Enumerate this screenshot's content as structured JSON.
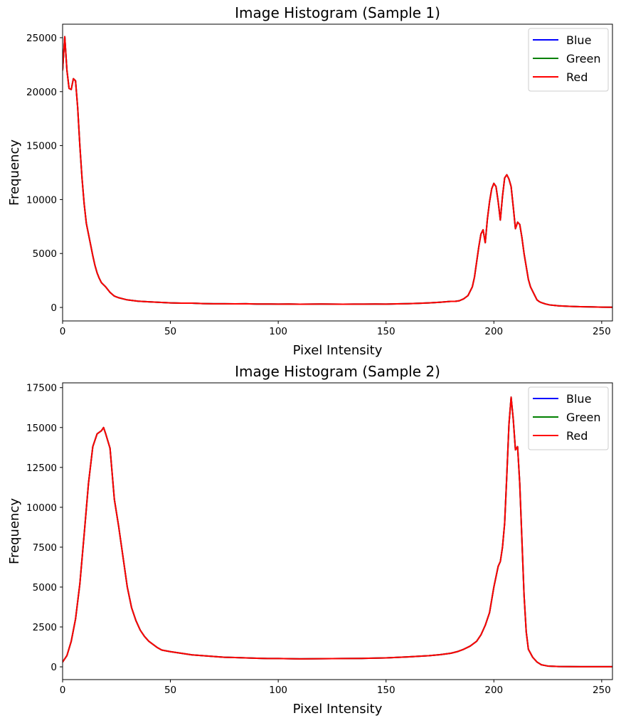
{
  "chart_data": [
    {
      "type": "line",
      "title": "Image Histogram (Sample 1)",
      "xlabel": "Pixel Intensity",
      "ylabel": "Frequency",
      "xlim": [
        0,
        255
      ],
      "ylim": [
        -1250,
        26250
      ],
      "xticks": [
        0,
        50,
        100,
        150,
        200,
        250
      ],
      "yticks": [
        0,
        5000,
        10000,
        15000,
        20000,
        25000
      ],
      "grid": false,
      "legend_position": "upper-right",
      "legend": [
        "Blue",
        "Green",
        "Red"
      ],
      "colors": {
        "Blue": "#0000ff",
        "Green": "#008000",
        "Red": "#ff0000"
      },
      "x": [
        0,
        1,
        2,
        3,
        4,
        5,
        6,
        7,
        8,
        9,
        10,
        11,
        12,
        13,
        14,
        15,
        16,
        17,
        18,
        19,
        20,
        22,
        24,
        26,
        28,
        30,
        35,
        40,
        45,
        50,
        55,
        60,
        65,
        70,
        75,
        80,
        85,
        90,
        95,
        100,
        105,
        110,
        115,
        120,
        125,
        130,
        135,
        140,
        145,
        150,
        155,
        160,
        165,
        170,
        175,
        180,
        182,
        184,
        186,
        188,
        190,
        191,
        192,
        193,
        194,
        195,
        196,
        197,
        198,
        199,
        200,
        201,
        202,
        203,
        204,
        205,
        206,
        207,
        208,
        209,
        210,
        211,
        212,
        213,
        214,
        215,
        216,
        217,
        218,
        219,
        220,
        221,
        222,
        224,
        226,
        228,
        230,
        235,
        240,
        245,
        250,
        255
      ],
      "series": [
        {
          "name": "Blue",
          "values": [
            22000,
            25100,
            22000,
            20300,
            20200,
            21200,
            21000,
            18500,
            15000,
            12000,
            9600,
            7800,
            6800,
            5800,
            4800,
            3900,
            3200,
            2700,
            2300,
            2100,
            1900,
            1400,
            1050,
            900,
            800,
            700,
            580,
            520,
            470,
            420,
            400,
            400,
            360,
            340,
            340,
            330,
            340,
            320,
            320,
            310,
            320,
            300,
            310,
            320,
            310,
            300,
            310,
            310,
            320,
            310,
            330,
            350,
            380,
            420,
            480,
            560,
            560,
            620,
            800,
            1100,
            1900,
            2800,
            4200,
            5600,
            6800,
            7200,
            6000,
            8200,
            9800,
            11000,
            11500,
            11200,
            9800,
            8100,
            10300,
            12000,
            12300,
            11900,
            11200,
            9300,
            7300,
            7900,
            7700,
            6500,
            5000,
            3800,
            2600,
            1900,
            1500,
            1100,
            700,
            550,
            450,
            320,
            230,
            190,
            150,
            100,
            70,
            50,
            30,
            20
          ]
        },
        {
          "name": "Green",
          "values": [
            22000,
            25100,
            22000,
            20300,
            20200,
            21200,
            21000,
            18500,
            15000,
            12000,
            9600,
            7800,
            6800,
            5800,
            4800,
            3900,
            3200,
            2700,
            2300,
            2100,
            1900,
            1400,
            1050,
            900,
            800,
            700,
            580,
            520,
            470,
            420,
            400,
            400,
            360,
            340,
            340,
            330,
            340,
            320,
            320,
            310,
            320,
            300,
            310,
            320,
            310,
            300,
            310,
            310,
            320,
            310,
            330,
            350,
            380,
            420,
            480,
            560,
            560,
            620,
            800,
            1100,
            1900,
            2800,
            4200,
            5600,
            6800,
            7200,
            6000,
            8200,
            9800,
            11000,
            11500,
            11200,
            9800,
            8100,
            10300,
            12000,
            12300,
            11900,
            11200,
            9300,
            7300,
            7900,
            7700,
            6500,
            5000,
            3800,
            2600,
            1900,
            1500,
            1100,
            700,
            550,
            450,
            320,
            230,
            190,
            150,
            100,
            70,
            50,
            30,
            20
          ]
        },
        {
          "name": "Red",
          "values": [
            22000,
            25100,
            22000,
            20300,
            20200,
            21200,
            21000,
            18500,
            15000,
            12000,
            9600,
            7800,
            6800,
            5800,
            4800,
            3900,
            3200,
            2700,
            2300,
            2100,
            1900,
            1400,
            1050,
            900,
            800,
            700,
            580,
            520,
            470,
            420,
            400,
            400,
            360,
            340,
            340,
            330,
            340,
            320,
            320,
            310,
            320,
            300,
            310,
            320,
            310,
            300,
            310,
            310,
            320,
            310,
            330,
            350,
            380,
            420,
            480,
            560,
            560,
            620,
            800,
            1100,
            1900,
            2800,
            4200,
            5600,
            6800,
            7200,
            6000,
            8200,
            9800,
            11000,
            11500,
            11200,
            9800,
            8100,
            10300,
            12000,
            12300,
            11900,
            11200,
            9300,
            7300,
            7900,
            7700,
            6500,
            5000,
            3800,
            2600,
            1900,
            1500,
            1100,
            700,
            550,
            450,
            320,
            230,
            190,
            150,
            100,
            70,
            50,
            30,
            20
          ]
        }
      ]
    },
    {
      "type": "line",
      "title": "Image Histogram (Sample 2)",
      "xlabel": "Pixel Intensity",
      "ylabel": "Frequency",
      "xlim": [
        0,
        255
      ],
      "ylim": [
        -800,
        17800
      ],
      "xticks": [
        0,
        50,
        100,
        150,
        200,
        250
      ],
      "yticks": [
        0,
        2500,
        5000,
        7500,
        10000,
        12500,
        15000,
        17500
      ],
      "grid": false,
      "legend_position": "upper-right",
      "legend": [
        "Blue",
        "Green",
        "Red"
      ],
      "colors": {
        "Blue": "#0000ff",
        "Green": "#008000",
        "Red": "#ff0000"
      },
      "x": [
        0,
        2,
        4,
        6,
        8,
        10,
        12,
        14,
        16,
        18,
        19,
        20,
        22,
        24,
        26,
        28,
        30,
        32,
        34,
        36,
        38,
        40,
        42,
        44,
        46,
        48,
        50,
        55,
        60,
        65,
        70,
        75,
        80,
        85,
        90,
        95,
        100,
        110,
        120,
        130,
        140,
        150,
        160,
        170,
        175,
        180,
        183,
        186,
        189,
        192,
        194,
        196,
        198,
        200,
        202,
        203,
        204,
        205,
        206,
        207,
        208,
        209,
        210,
        211,
        212,
        213,
        214,
        215,
        216,
        218,
        220,
        222,
        225,
        230,
        240,
        250,
        255
      ],
      "series": [
        {
          "name": "Blue",
          "values": [
            300,
            700,
            1600,
            3000,
            5200,
            8300,
            11500,
            13800,
            14600,
            14800,
            15000,
            14600,
            13700,
            10500,
            8800,
            6900,
            5000,
            3700,
            2900,
            2300,
            1900,
            1600,
            1400,
            1200,
            1050,
            1000,
            950,
            850,
            750,
            700,
            650,
            600,
            580,
            560,
            540,
            520,
            520,
            500,
            510,
            520,
            530,
            560,
            620,
            700,
            760,
            850,
            950,
            1100,
            1300,
            1600,
            2000,
            2600,
            3400,
            5000,
            6300,
            6600,
            7500,
            9000,
            12000,
            15200,
            16900,
            15500,
            13600,
            13800,
            11500,
            8000,
            4500,
            2200,
            1100,
            600,
            300,
            130,
            50,
            20,
            10,
            10,
            10
          ]
        },
        {
          "name": "Green",
          "values": [
            300,
            700,
            1600,
            3000,
            5200,
            8300,
            11500,
            13800,
            14600,
            14800,
            15000,
            14600,
            13700,
            10500,
            8800,
            6900,
            5000,
            3700,
            2900,
            2300,
            1900,
            1600,
            1400,
            1200,
            1050,
            1000,
            950,
            850,
            750,
            700,
            650,
            600,
            580,
            560,
            540,
            520,
            520,
            500,
            510,
            520,
            530,
            560,
            620,
            700,
            760,
            850,
            950,
            1100,
            1300,
            1600,
            2000,
            2600,
            3400,
            5000,
            6300,
            6600,
            7500,
            9000,
            12000,
            15200,
            16900,
            15500,
            13600,
            13800,
            11500,
            8000,
            4500,
            2200,
            1100,
            600,
            300,
            130,
            50,
            20,
            10,
            10,
            10
          ]
        },
        {
          "name": "Red",
          "values": [
            300,
            700,
            1600,
            3000,
            5200,
            8300,
            11500,
            13800,
            14600,
            14800,
            15000,
            14600,
            13700,
            10500,
            8800,
            6900,
            5000,
            3700,
            2900,
            2300,
            1900,
            1600,
            1400,
            1200,
            1050,
            1000,
            950,
            850,
            750,
            700,
            650,
            600,
            580,
            560,
            540,
            520,
            520,
            500,
            510,
            520,
            530,
            560,
            620,
            700,
            760,
            850,
            950,
            1100,
            1300,
            1600,
            2000,
            2600,
            3400,
            5000,
            6300,
            6600,
            7500,
            9000,
            12000,
            15200,
            16900,
            15500,
            13600,
            13800,
            11500,
            8000,
            4500,
            2200,
            1100,
            600,
            300,
            130,
            50,
            20,
            10,
            10,
            10
          ]
        }
      ]
    }
  ]
}
